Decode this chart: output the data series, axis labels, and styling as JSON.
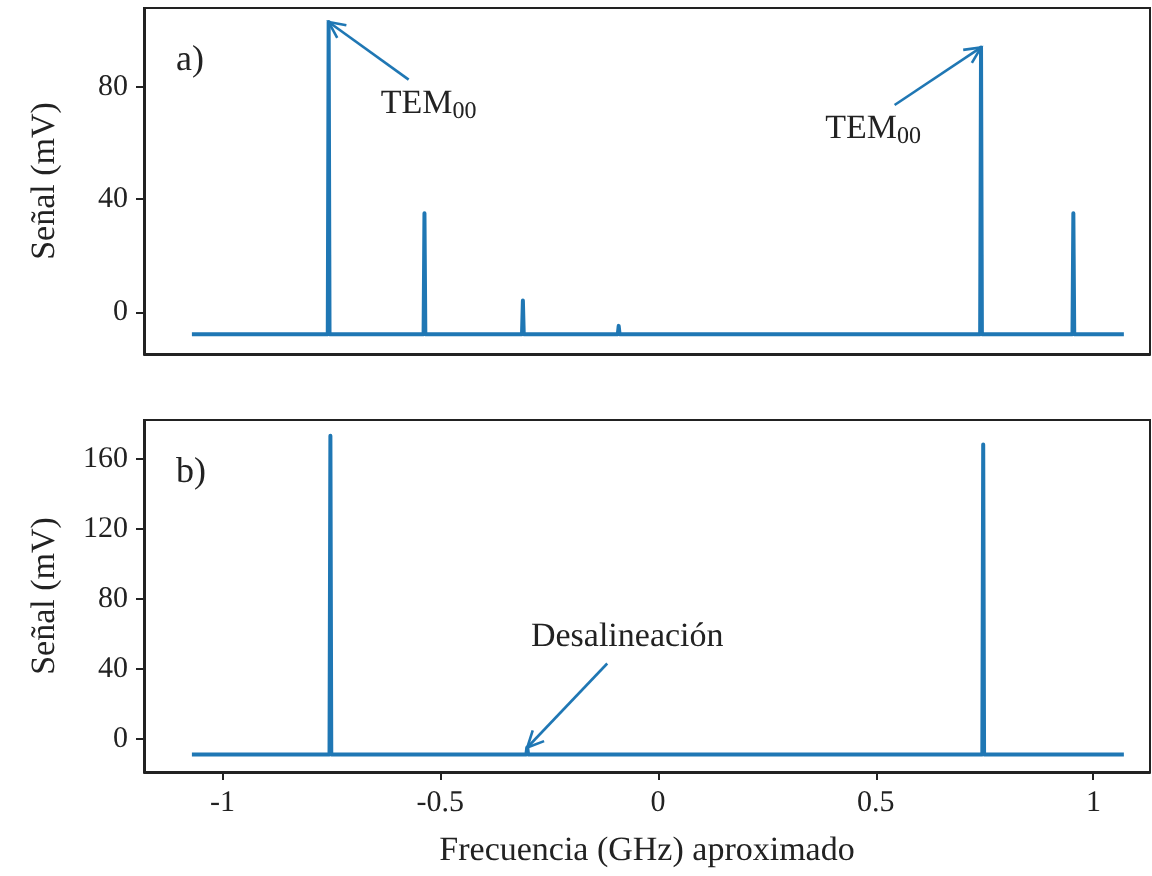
{
  "chart_data": [
    {
      "type": "line",
      "ylabel": "Señal (mV)",
      "xlim": [
        -1.18,
        1.13
      ],
      "ylim": [
        -15,
        108
      ],
      "yticks": [
        0,
        40,
        80
      ],
      "tick_labels": "y",
      "marker": "none",
      "x": [
        -1.07,
        -0.758,
        -0.756,
        -0.754,
        -0.538,
        -0.536,
        -0.534,
        -0.312,
        -0.31,
        -0.308,
        -0.092,
        -0.09,
        -0.088,
        0.74,
        0.742,
        0.744,
        0.952,
        0.954,
        0.956,
        1.07
      ],
      "series": [
        {
          "color": "#1f77b4",
          "values": [
            -8,
            -8,
            103,
            -8,
            -8,
            35,
            -8,
            -8,
            4,
            -8,
            -8,
            -5,
            -8,
            -8,
            94,
            -8,
            -8,
            35,
            -8,
            -8
          ]
        }
      ],
      "annotations": [
        "a)",
        {
          "text": "TEM$_{00}$",
          "x": -0.756,
          "y": 103
        },
        {
          "text": "TEM$_{00}$",
          "x": 0.742,
          "y": 94
        }
      ]
    },
    {
      "type": "line",
      "ylabel": "Señal (mV)",
      "xlabel": "Frecuencia (GHz) aproximado",
      "xlim": [
        -1.18,
        1.13
      ],
      "xticks": [
        -1,
        -0.5,
        0,
        0.5,
        1
      ],
      "ylim": [
        -19,
        182
      ],
      "yticks": [
        0,
        40,
        80,
        120,
        160
      ],
      "marker": "none",
      "x": [
        -1.07,
        -0.754,
        -0.752,
        -0.75,
        -0.302,
        -0.3,
        -0.298,
        0.745,
        0.747,
        0.749,
        1.07
      ],
      "series": [
        {
          "color": "#1f77b4",
          "values": [
            -9,
            -9,
            173,
            -9,
            -9,
            -5,
            -9,
            -9,
            168,
            -9,
            -9
          ]
        }
      ],
      "annotations": [
        "b)",
        {
          "text": "Desalineación",
          "x": -0.3,
          "y": -5
        }
      ]
    }
  ]
}
